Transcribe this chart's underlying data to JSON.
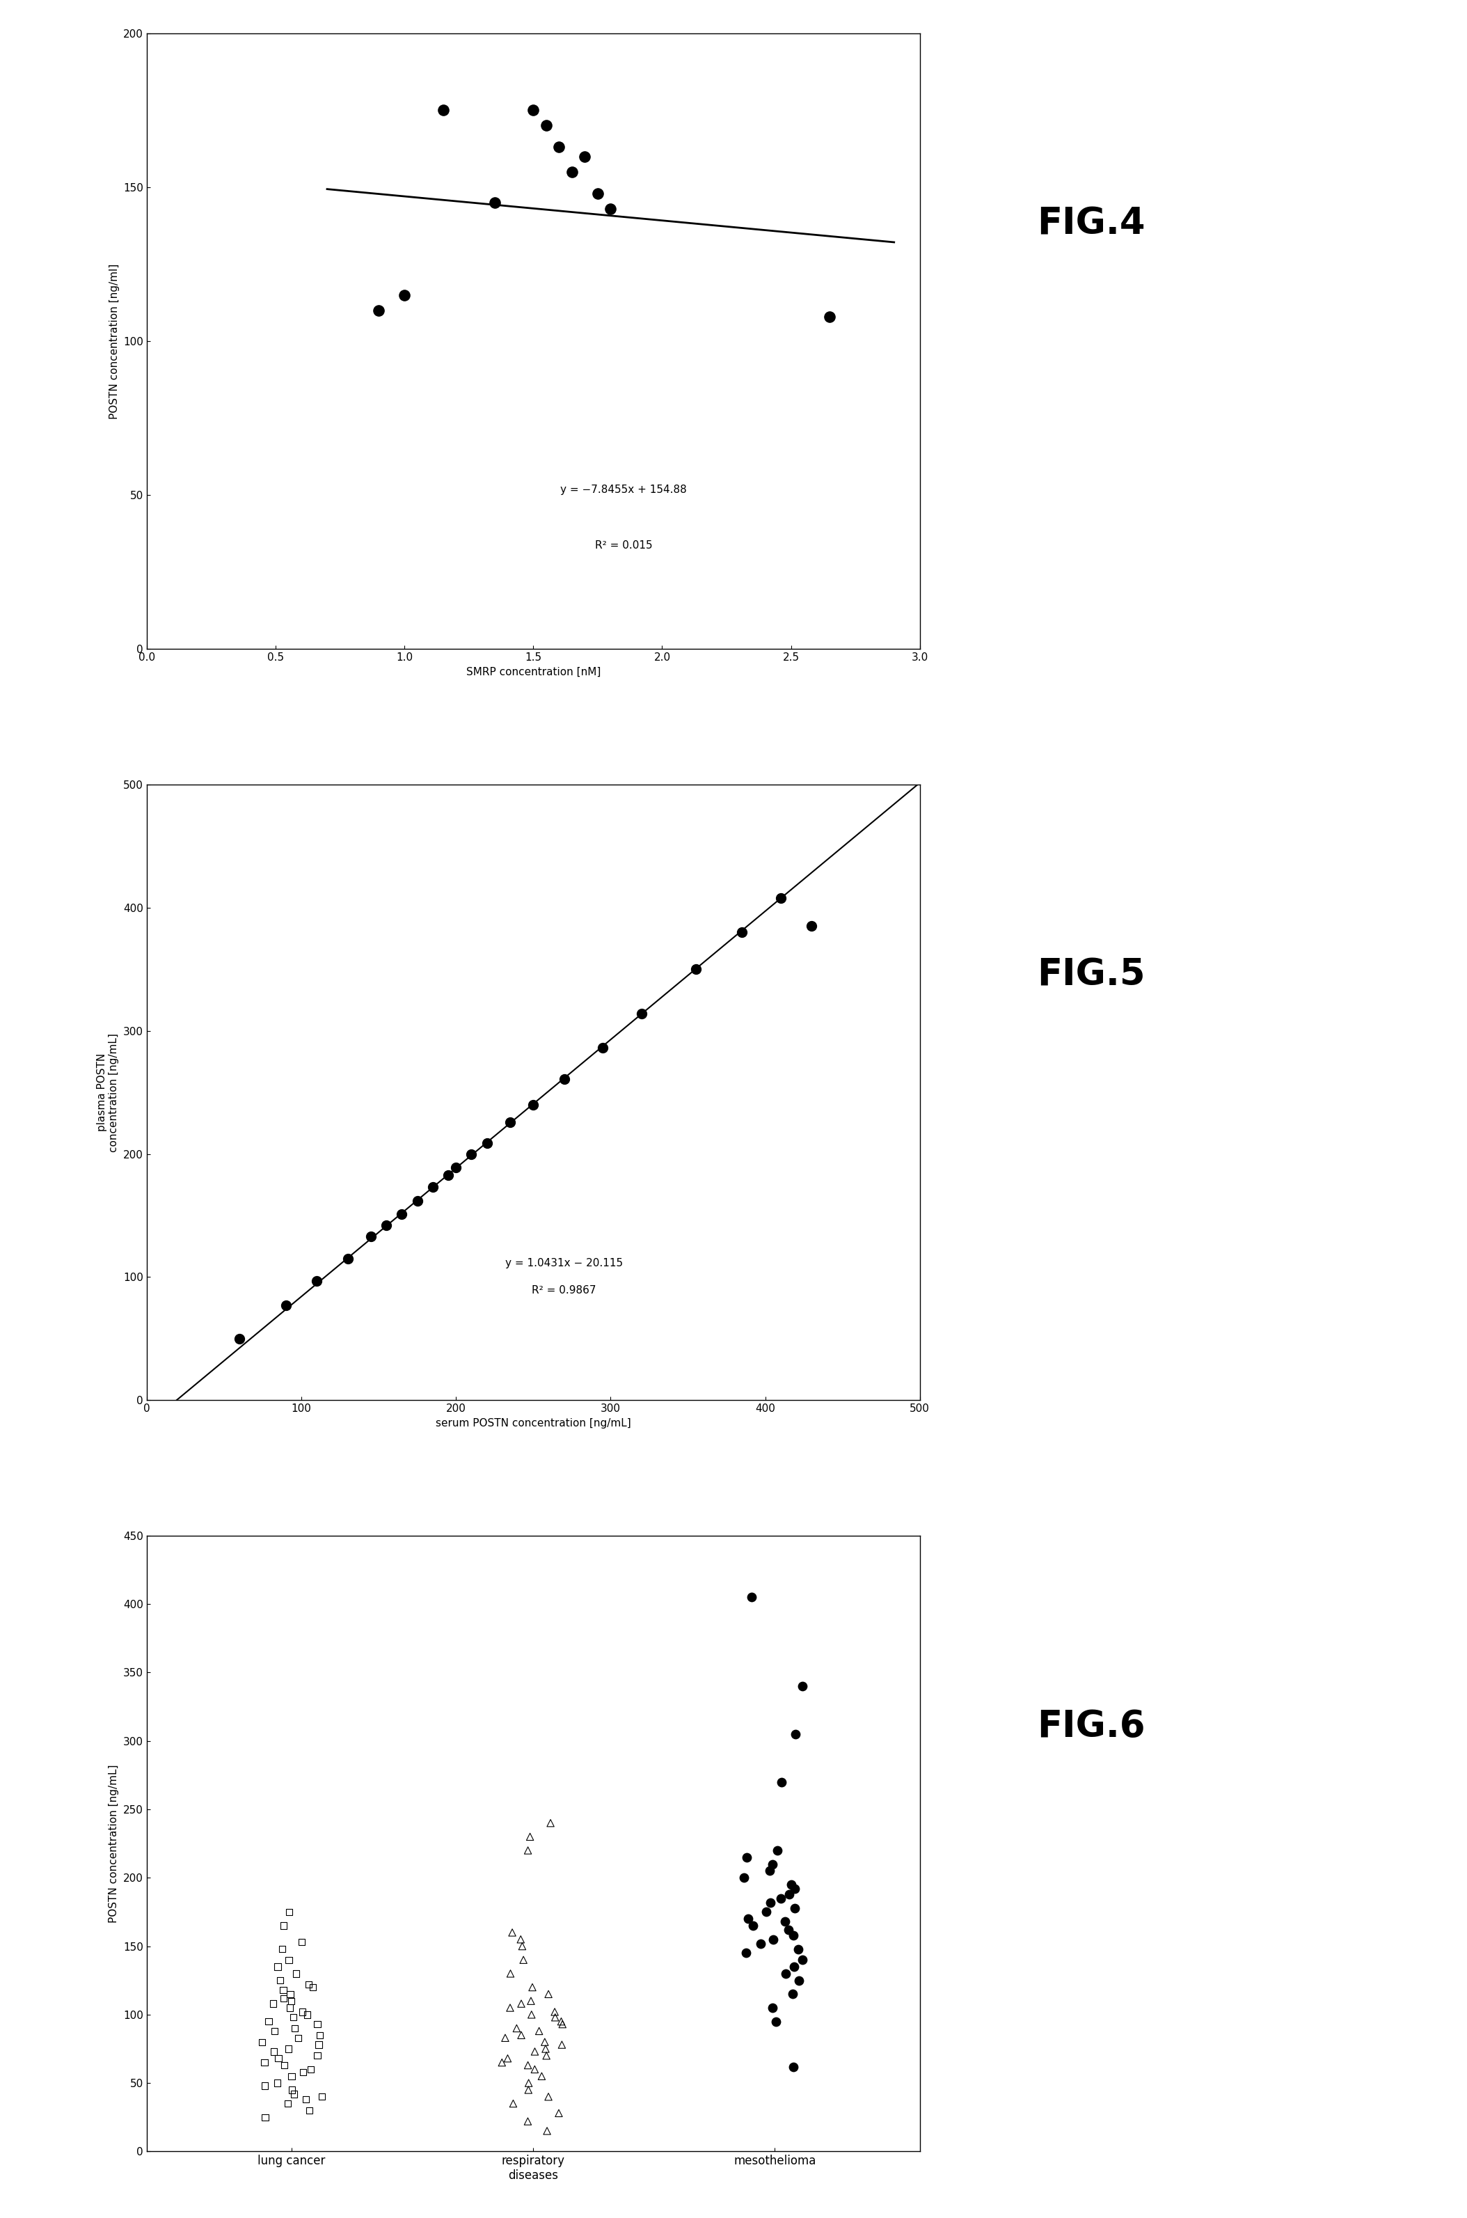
{
  "fig4": {
    "xlabel": "SMRP concentration [nM]",
    "ylabel": "POSTN concentration [ng/ml]",
    "xlim": [
      0.0,
      3.0
    ],
    "ylim": [
      0,
      200
    ],
    "xticks": [
      0.0,
      0.5,
      1.0,
      1.5,
      2.0,
      2.5,
      3.0
    ],
    "yticks": [
      0,
      50,
      100,
      150,
      200
    ],
    "scatter_x": [
      0.9,
      1.0,
      1.15,
      1.35,
      1.5,
      1.55,
      1.6,
      1.65,
      1.7,
      1.75,
      1.8,
      2.65
    ],
    "scatter_y": [
      110,
      115,
      175,
      145,
      175,
      170,
      163,
      155,
      160,
      148,
      143,
      108
    ],
    "slope": -7.8455,
    "intercept": 154.88,
    "eq_text": "y = −7.8455x + 154.88",
    "r2_text": "R² = 0.015",
    "eq_x": 1.85,
    "eq_y": 32,
    "line_x_start": 0.7,
    "line_x_end": 2.9
  },
  "fig5": {
    "xlabel": "serum POSTN concentration [ng/mL]",
    "ylabel": "plasma POSTN\nconcentration [ng/mL]",
    "xlim": [
      0,
      500
    ],
    "ylim": [
      0,
      500
    ],
    "xticks": [
      0,
      100,
      200,
      300,
      400,
      500
    ],
    "yticks": [
      0,
      100,
      200,
      300,
      400,
      500
    ],
    "scatter_x": [
      60,
      90,
      110,
      130,
      145,
      155,
      165,
      175,
      185,
      195,
      200,
      210,
      220,
      235,
      250,
      270,
      295,
      320,
      355,
      385,
      410,
      430
    ],
    "scatter_y": [
      50,
      77,
      97,
      115,
      133,
      142,
      151,
      162,
      173,
      183,
      189,
      200,
      209,
      226,
      240,
      261,
      286,
      314,
      350,
      380,
      408,
      385
    ],
    "slope": 1.0431,
    "intercept": -20.115,
    "eq_text": "y = 1.0431x − 20.115",
    "r2_text": "R² = 0.9867",
    "eq_x": 270,
    "eq_y": 85,
    "line_x_start": 0,
    "line_x_end": 500
  },
  "fig6": {
    "ylabel": "POSTN concentration [ng/mL]",
    "ylim": [
      0,
      450
    ],
    "yticks": [
      0,
      50,
      100,
      150,
      200,
      250,
      300,
      350,
      400,
      450
    ],
    "categories": [
      "lung cancer",
      "respiratory\ndiseases",
      "mesothelioma"
    ],
    "lung_cancer": [
      25,
      30,
      35,
      38,
      40,
      42,
      45,
      48,
      50,
      55,
      58,
      60,
      63,
      65,
      68,
      70,
      73,
      75,
      78,
      80,
      83,
      85,
      88,
      90,
      93,
      95,
      98,
      100,
      102,
      105,
      108,
      110,
      112,
      115,
      118,
      120,
      122,
      125,
      130,
      135,
      140,
      148,
      153,
      165,
      175
    ],
    "respiratory": [
      15,
      22,
      28,
      35,
      40,
      45,
      50,
      55,
      60,
      63,
      65,
      68,
      70,
      73,
      75,
      78,
      80,
      83,
      85,
      88,
      90,
      93,
      95,
      98,
      100,
      102,
      105,
      108,
      110,
      115,
      120,
      130,
      140,
      150,
      155,
      160,
      220,
      230,
      240
    ],
    "mesothelioma": [
      62,
      95,
      105,
      115,
      125,
      130,
      135,
      140,
      145,
      148,
      152,
      155,
      158,
      162,
      165,
      168,
      170,
      175,
      178,
      182,
      185,
      188,
      192,
      195,
      200,
      205,
      210,
      215,
      220,
      270,
      305,
      340,
      405
    ]
  },
  "label_fontsize": 38,
  "tick_fontsize": 11,
  "axis_fontsize": 11
}
